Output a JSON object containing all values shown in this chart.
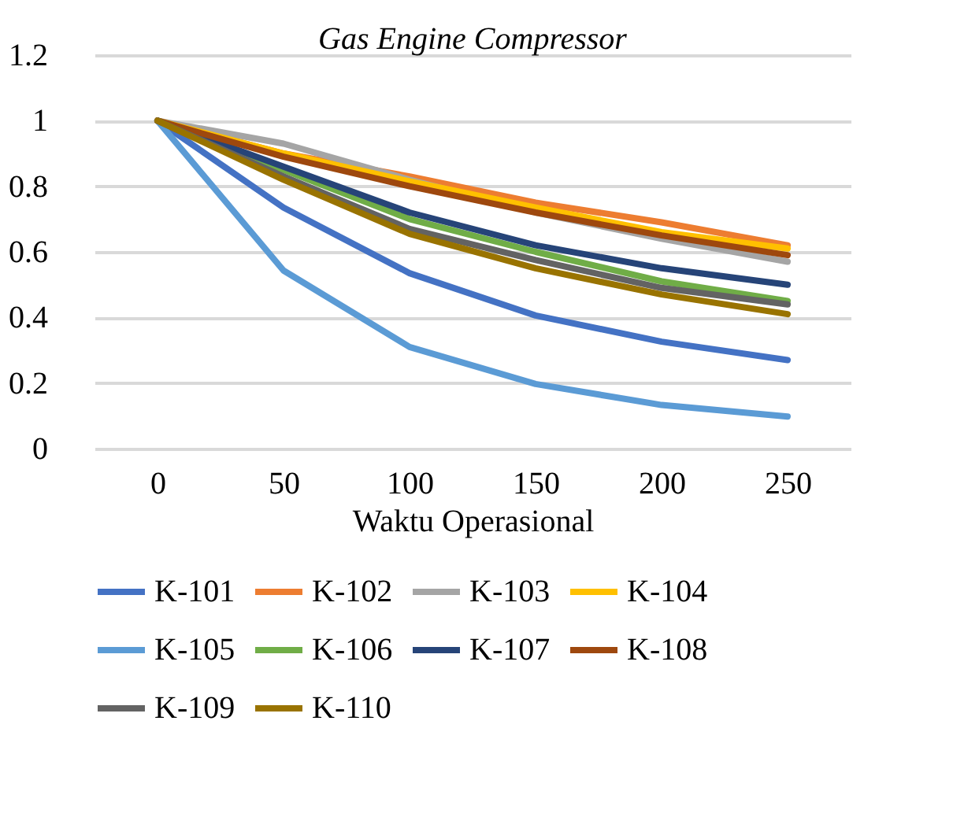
{
  "chart_data": {
    "type": "line",
    "title": "Gas Engine Compressor",
    "xlabel": "Waktu Operasional",
    "x": [
      0,
      50,
      100,
      150,
      200,
      250
    ],
    "xlim": [
      -25,
      275
    ],
    "xticks": [
      0,
      50,
      100,
      150,
      200,
      250
    ],
    "ylim": [
      0,
      1.2
    ],
    "yticks": [
      0,
      0.2,
      0.4,
      0.6,
      0.8,
      1,
      1.2
    ],
    "grid": "y",
    "legend": "bottom",
    "marker": "none",
    "line_style": "solid",
    "series": [
      {
        "name": "K-101",
        "color": "#4472c4",
        "values": [
          1,
          0.735,
          0.535,
          0.406,
          0.326,
          0.27
        ]
      },
      {
        "name": "K-102",
        "color": "#ed7d31",
        "values": [
          1,
          0.9,
          0.83,
          0.75,
          0.69,
          0.62
        ]
      },
      {
        "name": "K-103",
        "color": "#a5a5a5",
        "values": [
          1,
          0.93,
          0.82,
          0.72,
          0.64,
          0.57
        ]
      },
      {
        "name": "K-104",
        "color": "#ffc000",
        "values": [
          1,
          0.9,
          0.815,
          0.735,
          0.66,
          0.61
        ]
      },
      {
        "name": "K-105",
        "color": "#5b9bd5",
        "values": [
          1,
          0.543,
          0.31,
          0.197,
          0.133,
          0.098
        ]
      },
      {
        "name": "K-106",
        "color": "#70ad47",
        "values": [
          1,
          0.85,
          0.7,
          0.6,
          0.51,
          0.45
        ]
      },
      {
        "name": "K-107",
        "color": "#264478",
        "values": [
          1,
          0.86,
          0.72,
          0.62,
          0.55,
          0.5
        ]
      },
      {
        "name": "K-108",
        "color": "#9e480e",
        "values": [
          1,
          0.89,
          0.8,
          0.72,
          0.65,
          0.59
        ]
      },
      {
        "name": "K-109",
        "color": "#636363",
        "values": [
          1,
          0.83,
          0.67,
          0.575,
          0.49,
          0.44
        ]
      },
      {
        "name": "K-110",
        "color": "#997300",
        "values": [
          1,
          0.82,
          0.655,
          0.55,
          0.47,
          0.41
        ]
      }
    ]
  }
}
